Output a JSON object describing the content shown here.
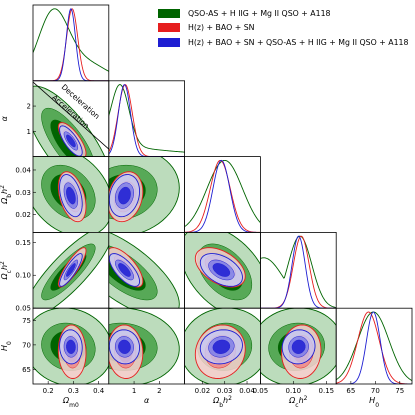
{
  "chart_data": {
    "type": "corner",
    "parameters": [
      {
        "key": "om",
        "label": "Ωm0",
        "range": [
          0.14,
          0.44
        ],
        "ticks": [
          0.2,
          0.3,
          0.4
        ],
        "tick_labels": [
          "0.2",
          "0.3",
          "0.4"
        ]
      },
      {
        "key": "alpha",
        "label": "α",
        "range": [
          0.0,
          3.0
        ],
        "ticks": [
          1,
          2
        ],
        "tick_labels": [
          "1",
          "2"
        ]
      },
      {
        "key": "obh2",
        "label": "Ωbh²",
        "range": [
          0.012,
          0.046
        ],
        "ticks": [
          0.02,
          0.03,
          0.04
        ],
        "tick_labels": [
          "0.02",
          "0.03",
          "0.04"
        ]
      },
      {
        "key": "och2",
        "label": "Ωch²",
        "range": [
          0.05,
          0.165
        ],
        "ticks": [
          0.05,
          0.1,
          0.15
        ],
        "tick_labels": [
          "0.05",
          "0.10",
          "0.15"
        ]
      },
      {
        "key": "h0",
        "label": "H0",
        "range": [
          62,
          77.5
        ],
        "ticks": [
          65,
          70,
          75
        ],
        "tick_labels": [
          "65",
          "70",
          "75"
        ]
      }
    ],
    "series": [
      {
        "name": "QSO-AS + H IIG + Mg II QSO + A118",
        "color": "#006400",
        "color_mid": "#57a957",
        "color_light": "#bcdcbc"
      },
      {
        "name": "H(z) + BAO + SN",
        "color": "#e61e1e",
        "color_mid": "#f08a8a",
        "color_light": "#f9cfcf"
      },
      {
        "name": "H(z) + BAO + SN + QSO-AS + H IIG + Mg II QSO + A118",
        "color": "#1e1ed2",
        "color_mid": "#7f7fe6",
        "color_light": "#c8c8f3"
      }
    ],
    "annotations": [
      {
        "text": "Deceleration",
        "panel": "om-alpha"
      },
      {
        "text": "Acceleration",
        "panel": "om-alpha"
      }
    ]
  }
}
